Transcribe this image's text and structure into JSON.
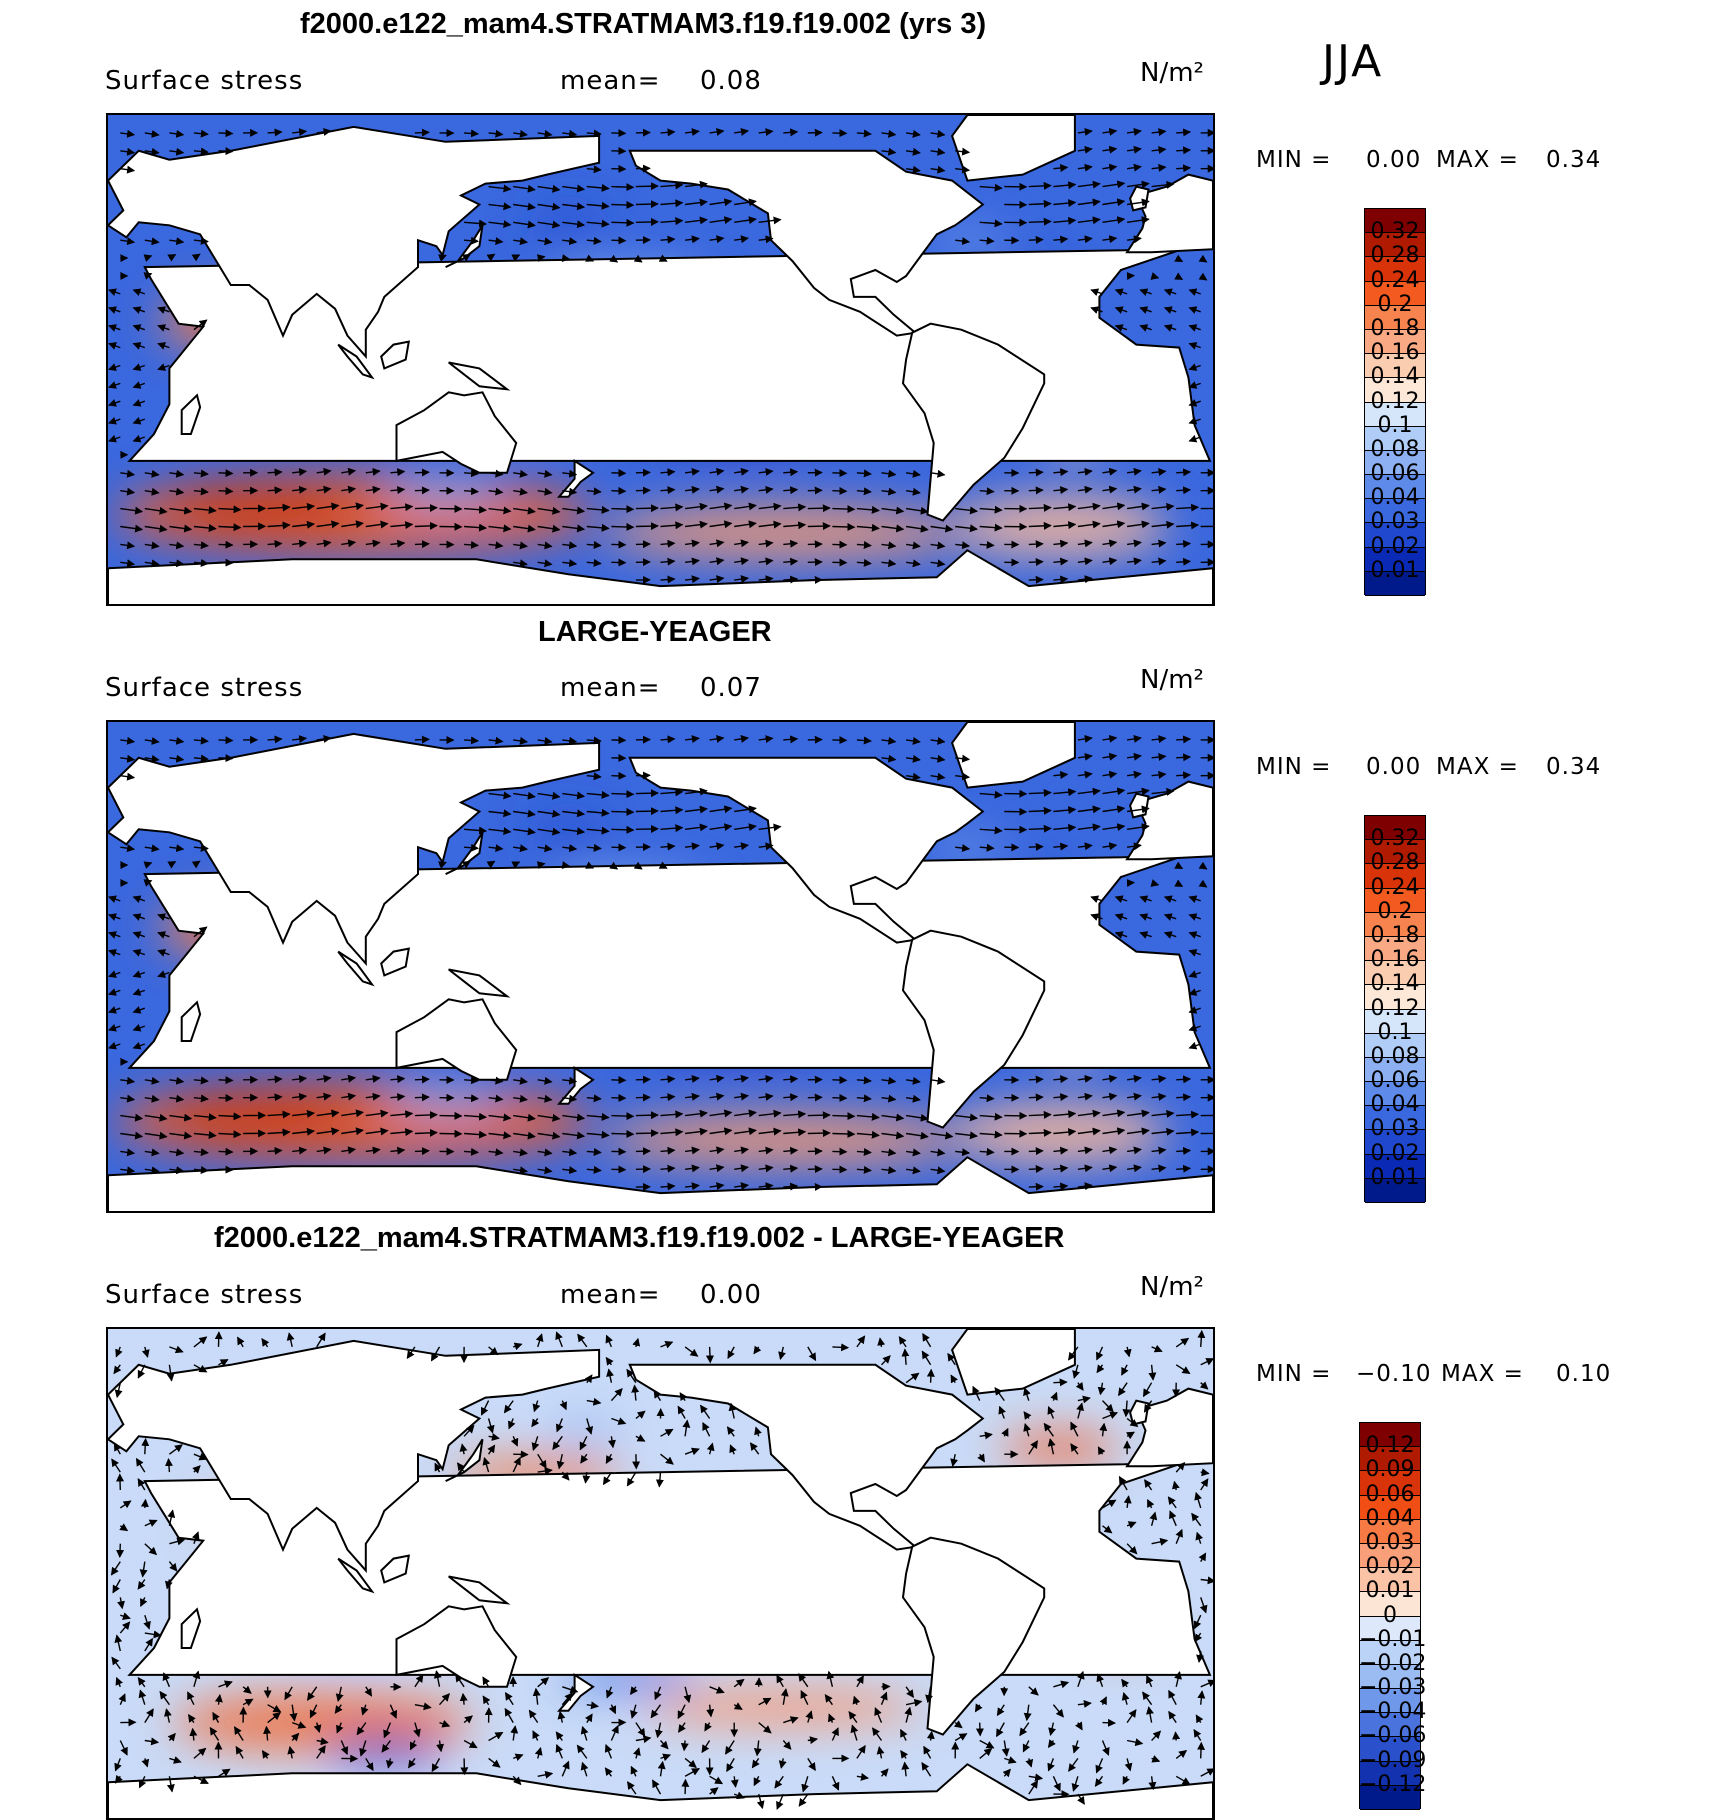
{
  "season": "JJA",
  "panels": [
    {
      "title": "f2000.e122_mam4.STRATMAM3.f19.f19.002 (yrs 3)",
      "variable": "Surface stress",
      "mean_label": "mean=",
      "mean_value": "0.08",
      "units": "N/m²",
      "min_label": "MIN =",
      "min_value": "0.00",
      "max_label": "MAX =",
      "max_value": "0.34",
      "colorbar_ticks": [
        "0.32",
        "0.28",
        "0.24",
        "0.2",
        "0.18",
        "0.16",
        "0.14",
        "0.12",
        "0.1",
        "0.08",
        "0.06",
        "0.04",
        "0.03",
        "0.02",
        "0.01"
      ],
      "colorbar_colors": [
        "#7f0000",
        "#b01a00",
        "#d9330a",
        "#f25a20",
        "#f7844e",
        "#f9a983",
        "#fbcdb0",
        "#fde8d8",
        "#d5e6fb",
        "#b0cdf8",
        "#8cb0f2",
        "#5e8ae9",
        "#3a68de",
        "#1f48cf",
        "#0a2ab5",
        "#001a8c"
      ],
      "map_style": "full"
    },
    {
      "title": "LARGE-YEAGER",
      "variable": "Surface stress",
      "mean_label": "mean=",
      "mean_value": "0.07",
      "units": "N/m²",
      "min_label": "MIN =",
      "min_value": "0.00",
      "max_label": "MAX =",
      "max_value": "0.34",
      "colorbar_ticks": [
        "0.32",
        "0.28",
        "0.24",
        "0.2",
        "0.18",
        "0.16",
        "0.14",
        "0.12",
        "0.1",
        "0.08",
        "0.06",
        "0.04",
        "0.03",
        "0.02",
        "0.01"
      ],
      "colorbar_colors": [
        "#7f0000",
        "#b01a00",
        "#d9330a",
        "#f25a20",
        "#f7844e",
        "#f9a983",
        "#fbcdb0",
        "#fde8d8",
        "#d5e6fb",
        "#b0cdf8",
        "#8cb0f2",
        "#5e8ae9",
        "#3a68de",
        "#1f48cf",
        "#0a2ab5",
        "#001a8c"
      ],
      "map_style": "full"
    },
    {
      "title": "f2000.e122_mam4.STRATMAM3.f19.f19.002 - LARGE-YEAGER",
      "variable": "Surface stress",
      "mean_label": "mean=",
      "mean_value": "0.00",
      "units": "N/m²",
      "min_label": "MIN =",
      "min_value": "−0.10",
      "max_label": "MAX =",
      "max_value": "0.10",
      "colorbar_ticks": [
        "0.12",
        "0.09",
        "0.06",
        "0.04",
        "0.03",
        "0.02",
        "0.01",
        "0",
        "−0.01",
        "−0.02",
        "−0.03",
        "−0.04",
        "−0.06",
        "−0.09",
        "−0.12"
      ],
      "colorbar_colors": [
        "#7f0000",
        "#b01a00",
        "#d9330a",
        "#f04e14",
        "#f77a45",
        "#f9a07a",
        "#fbc3a5",
        "#fde5d5",
        "#dde9fb",
        "#bcd3f8",
        "#9bbcf3",
        "#6f97ea",
        "#4a73de",
        "#2b50cc",
        "#1232b0",
        "#001a8c"
      ],
      "map_style": "diff"
    }
  ]
}
